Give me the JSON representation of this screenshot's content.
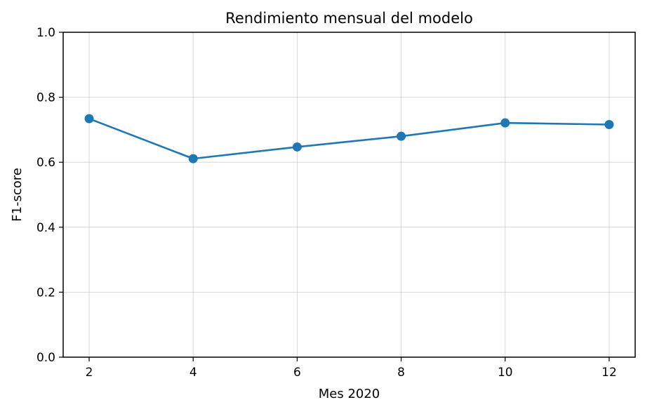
{
  "chart_data": {
    "type": "line",
    "title": "Rendimiento mensual del modelo",
    "xlabel": "Mes 2020",
    "ylabel": "F1-score",
    "xlim": [
      1.5,
      12.5
    ],
    "ylim": [
      0,
      1.0
    ],
    "x_ticks": [
      2,
      4,
      6,
      8,
      10,
      12
    ],
    "y_ticks": [
      0.0,
      0.2,
      0.4,
      0.6,
      0.8,
      1.0
    ],
    "y_tick_labels": [
      "0.0",
      "0.2",
      "0.4",
      "0.6",
      "0.8",
      "1.0"
    ],
    "grid": true,
    "legend": "none",
    "series": [
      {
        "color": "#1f77b4",
        "marker": "circle",
        "x": [
          2,
          4,
          6,
          8,
          10,
          12
        ],
        "y": [
          0.734,
          0.611,
          0.647,
          0.68,
          0.721,
          0.716
        ]
      }
    ]
  }
}
